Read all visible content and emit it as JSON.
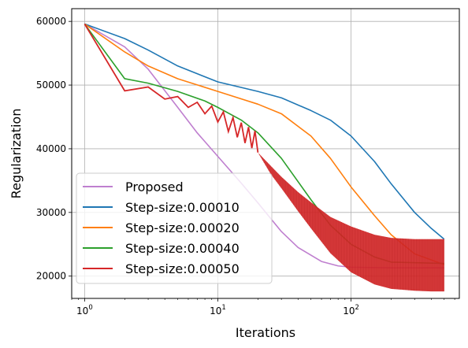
{
  "chart_data": {
    "type": "line",
    "xlabel": "Iterations",
    "ylabel": "Regularization",
    "xscale": "log",
    "xlim": [
      0.8,
      650
    ],
    "ylim": [
      16500,
      62000
    ],
    "grid": true,
    "legend_position": "lower-left",
    "x_ticks": [
      {
        "value": 1,
        "base": "10",
        "exp": "0"
      },
      {
        "value": 10,
        "base": "10",
        "exp": "1"
      },
      {
        "value": 100,
        "base": "10",
        "exp": "2"
      }
    ],
    "y_ticks": [
      {
        "value": 20000,
        "label": "20000"
      },
      {
        "value": 30000,
        "label": "30000"
      },
      {
        "value": 40000,
        "label": "40000"
      },
      {
        "value": 50000,
        "label": "50000"
      },
      {
        "value": 60000,
        "label": "60000"
      }
    ],
    "series": [
      {
        "name": "Proposed",
        "color": "#bf7fcf",
        "x": [
          1,
          2,
          3,
          5,
          7,
          10,
          15,
          20,
          30,
          40,
          60,
          80,
          100,
          200,
          500
        ],
        "y": [
          59600,
          56000,
          52500,
          46500,
          42500,
          38800,
          34600,
          31500,
          27000,
          24500,
          22300,
          21600,
          21400,
          21300,
          21300
        ]
      },
      {
        "name": "Step-size:0.00010",
        "color": "#1f77b4",
        "x": [
          1,
          2,
          3,
          5,
          10,
          20,
          30,
          50,
          70,
          100,
          150,
          200,
          300,
          400,
          500
        ],
        "y": [
          59600,
          57300,
          55500,
          53000,
          50500,
          49000,
          48000,
          46000,
          44500,
          42000,
          38000,
          34500,
          30000,
          27500,
          25800
        ]
      },
      {
        "name": "Step-size:0.00020",
        "color": "#ff7f0e",
        "x": [
          1,
          2,
          3,
          5,
          10,
          20,
          30,
          50,
          70,
          100,
          150,
          200,
          300,
          500
        ],
        "y": [
          59600,
          55200,
          53000,
          51000,
          49000,
          47000,
          45500,
          42000,
          38500,
          34000,
          29500,
          26500,
          23500,
          21800
        ]
      },
      {
        "name": "Step-size:0.00040",
        "color": "#2ca02c",
        "x": [
          1,
          2,
          3,
          5,
          8,
          10,
          15,
          20,
          30,
          50,
          70,
          100,
          150,
          200,
          500
        ],
        "y": [
          59600,
          51000,
          50300,
          49000,
          47500,
          46500,
          44500,
          42500,
          38500,
          32000,
          28000,
          25000,
          23000,
          22200,
          22000
        ]
      },
      {
        "name": "Step-size:0.00050",
        "color": "#d62728",
        "x": [
          1,
          2,
          3,
          4,
          5,
          6,
          7,
          8,
          9,
          10,
          11,
          12,
          13,
          14,
          15,
          16,
          17,
          18,
          19,
          20,
          25,
          30,
          40,
          50,
          70,
          100,
          150,
          200,
          300,
          400,
          500
        ],
        "y": [
          59600,
          49100,
          49700,
          47800,
          48200,
          46500,
          47300,
          45500,
          46700,
          44200,
          45800,
          42700,
          44900,
          41800,
          44100,
          40900,
          43400,
          40100,
          42800,
          39400,
          37300,
          35600,
          33200,
          31600,
          29300,
          27800,
          26500,
          26000,
          25800,
          25800,
          25800
        ],
        "lower": [
          59600,
          49100,
          49700,
          47800,
          48200,
          46500,
          47300,
          45500,
          46700,
          44200,
          45800,
          42700,
          44900,
          41800,
          44100,
          40900,
          43400,
          40100,
          42800,
          39400,
          36000,
          33800,
          30200,
          27500,
          23600,
          20600,
          18700,
          18000,
          17700,
          17600,
          17600
        ]
      }
    ]
  }
}
